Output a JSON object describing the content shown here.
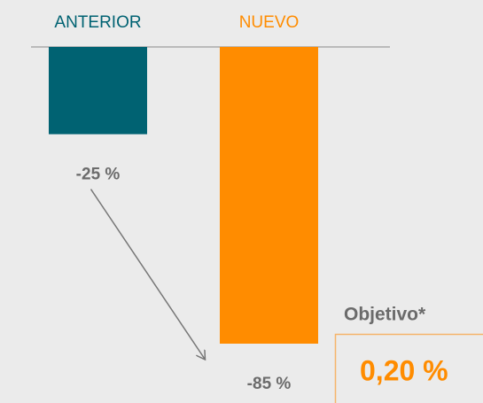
{
  "chart_data": {
    "type": "bar",
    "categories": [
      "ANTERIOR",
      "NUEVO"
    ],
    "values": [
      -25,
      -85
    ],
    "value_labels": [
      "-25 %",
      "-85 %"
    ],
    "colors": [
      "#006272",
      "#ff8c00"
    ],
    "ylim": [
      -85,
      0
    ],
    "annotations": [
      "Objetivo*",
      "0,20 %"
    ]
  }
}
